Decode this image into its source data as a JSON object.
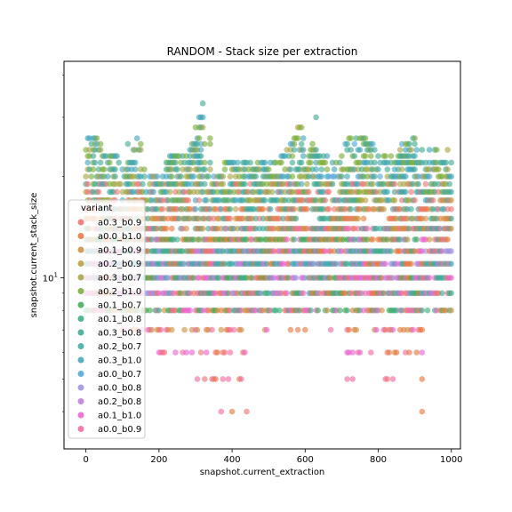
{
  "chart_data": {
    "type": "scatter",
    "title": "RANDOM - Stack size per extraction",
    "xlabel": "snapshot.current_extraction",
    "ylabel": "snapshot.current_stack_size",
    "xlim": [
      -60,
      1025
    ],
    "ylim": [
      3.1,
      44
    ],
    "y_scale": "log",
    "x_ticks": [
      0,
      200,
      400,
      600,
      800,
      1000
    ],
    "y_ticks": [
      {
        "value": 10,
        "base": "10",
        "exp": "1"
      }
    ],
    "grid": false,
    "legend": {
      "placement": "lower-left",
      "title": "variant",
      "entries": [
        {
          "name": "a0.3_b0.9",
          "color": "#f0706f"
        },
        {
          "name": "a0.0_b1.0",
          "color": "#e6743a"
        },
        {
          "name": "a0.1_b0.9",
          "color": "#cb8d3b"
        },
        {
          "name": "a0.2_b0.9",
          "color": "#b79a38"
        },
        {
          "name": "a0.3_b0.7",
          "color": "#a5a13f"
        },
        {
          "name": "a0.2_b1.0",
          "color": "#78ab32"
        },
        {
          "name": "a0.1_b0.7",
          "color": "#3ba851"
        },
        {
          "name": "a0.1_b0.8",
          "color": "#36ab7a"
        },
        {
          "name": "a0.3_b0.8",
          "color": "#38a78f"
        },
        {
          "name": "a0.2_b0.7",
          "color": "#3aa8a0"
        },
        {
          "name": "a0.3_b1.0",
          "color": "#3ba3b8"
        },
        {
          "name": "a0.0_b0.7",
          "color": "#4fa2d8"
        },
        {
          "name": "a0.0_b0.8",
          "color": "#9b8fdf"
        },
        {
          "name": "a0.2_b0.8",
          "color": "#c278db"
        },
        {
          "name": "a0.1_b1.0",
          "color": "#ea5fce"
        },
        {
          "name": "a0.0_b0.9",
          "color": "#f266a0"
        }
      ]
    },
    "levels": [
      {
        "y": 4,
        "ranges": [
          [
            370,
            370
          ],
          [
            400,
            400
          ],
          [
            440,
            440
          ],
          [
            920,
            920
          ]
        ],
        "colors": [
          "#f266a0",
          "#e6743a",
          "#f0706f",
          "#e6743a"
        ],
        "density": 1.0
      },
      {
        "y": 5,
        "ranges": [
          [
            300,
            440
          ],
          [
            710,
            730
          ],
          [
            810,
            840
          ],
          [
            900,
            920
          ]
        ],
        "colors": [
          "#e6743a",
          "#f266a0",
          "#f0706f"
        ],
        "density": 0.35
      },
      {
        "y": 6,
        "ranges": [
          [
            200,
            440
          ],
          [
            640,
            660
          ],
          [
            710,
            780
          ],
          [
            820,
            920
          ]
        ],
        "colors": [
          "#e6743a",
          "#f266a0",
          "#ea5fce",
          "#f0706f"
        ],
        "density": 0.35
      },
      {
        "y": 7,
        "ranges": [
          [
            100,
            440
          ],
          [
            490,
            500
          ],
          [
            560,
            600
          ],
          [
            660,
            920
          ]
        ],
        "colors": [
          "#e6743a",
          "#f266a0",
          "#ea5fce",
          "#cb8d3b"
        ],
        "density": 0.45
      },
      {
        "y": 8,
        "ranges": [
          [
            0,
            1000
          ]
        ],
        "colors": [
          "#e6743a",
          "#f266a0",
          "#3ba851",
          "#cb8d3b",
          "#ea5fce",
          "#36ab7a"
        ],
        "density": 0.7
      },
      {
        "y": 9,
        "ranges": [
          [
            0,
            1000
          ]
        ],
        "colors": [
          "#9b8fdf",
          "#f266a0",
          "#3ba851",
          "#e6743a",
          "#ea5fce",
          "#38a78f"
        ],
        "density": 0.85
      },
      {
        "y": 10,
        "ranges": [
          [
            0,
            1000
          ]
        ],
        "colors": [
          "#3ba851",
          "#9b8fdf",
          "#e6743a",
          "#38a78f",
          "#ea5fce",
          "#c278db"
        ],
        "density": 0.9
      },
      {
        "y": 11,
        "ranges": [
          [
            0,
            1000
          ]
        ],
        "colors": [
          "#38a78f",
          "#9b8fdf",
          "#e6743a",
          "#ea5fce",
          "#3ba3b8"
        ],
        "density": 0.9
      },
      {
        "y": 12,
        "ranges": [
          [
            0,
            1000
          ]
        ],
        "colors": [
          "#38a78f",
          "#9b8fdf",
          "#ea5fce",
          "#e6743a",
          "#36ab7a"
        ],
        "density": 0.9
      },
      {
        "y": 13,
        "ranges": [
          [
            0,
            1000
          ]
        ],
        "colors": [
          "#38a78f",
          "#e6743a",
          "#ea5fce",
          "#cb8d3b",
          "#3ba851"
        ],
        "density": 0.85
      },
      {
        "y": 14,
        "ranges": [
          [
            0,
            1000
          ]
        ],
        "colors": [
          "#e6743a",
          "#38a78f",
          "#f266a0",
          "#cb8d3b",
          "#3aa8a0"
        ],
        "density": 0.8
      },
      {
        "y": 15,
        "ranges": [
          [
            0,
            580
          ],
          [
            640,
            760
          ],
          [
            830,
            1000
          ]
        ],
        "colors": [
          "#38a78f",
          "#e6743a",
          "#f0706f",
          "#cb8d3b"
        ],
        "density": 0.75
      },
      {
        "y": 16,
        "ranges": [
          [
            0,
            1000
          ]
        ],
        "colors": [
          "#b79a38",
          "#38a78f",
          "#f0706f",
          "#3ba3b8",
          "#e6743a"
        ],
        "density": 0.7
      },
      {
        "y": 17,
        "ranges": [
          [
            0,
            1000
          ]
        ],
        "colors": [
          "#3ba3b8",
          "#38a78f",
          "#f0706f",
          "#b79a38",
          "#78ab32"
        ],
        "density": 0.7
      },
      {
        "y": 18,
        "ranges": [
          [
            0,
            1000
          ]
        ],
        "colors": [
          "#3ba3b8",
          "#38a78f",
          "#78ab32",
          "#f0706f",
          "#a5a13f"
        ],
        "density": 0.65
      },
      {
        "y": 19,
        "ranges": [
          [
            0,
            1000
          ]
        ],
        "colors": [
          "#38a78f",
          "#78ab32",
          "#3ba3b8",
          "#a5a13f",
          "#f0706f"
        ],
        "density": 0.65
      },
      {
        "y": 20,
        "ranges": [
          [
            0,
            1000
          ]
        ],
        "colors": [
          "#38a78f",
          "#78ab32",
          "#3ba3b8",
          "#4fa2d8",
          "#a5a13f"
        ],
        "density": 0.6
      },
      {
        "y": 21,
        "ranges": [
          [
            0,
            170
          ],
          [
            220,
            340
          ],
          [
            380,
            1000
          ]
        ],
        "colors": [
          "#38a78f",
          "#78ab32",
          "#3ba3b8",
          "#a5a13f"
        ],
        "density": 0.55
      },
      {
        "y": 22,
        "ranges": [
          [
            0,
            140
          ],
          [
            220,
            340
          ],
          [
            380,
            540
          ],
          [
            560,
            700
          ],
          [
            740,
            1000
          ]
        ],
        "colors": [
          "#38a78f",
          "#78ab32",
          "#3ba3b8"
        ],
        "density": 0.55
      },
      {
        "y": 23,
        "ranges": [
          [
            0,
            100
          ],
          [
            230,
            320
          ],
          [
            530,
            660
          ],
          [
            700,
            900
          ]
        ],
        "colors": [
          "#78ab32",
          "#38a78f",
          "#3ba3b8"
        ],
        "density": 0.5
      },
      {
        "y": 24,
        "ranges": [
          [
            0,
            60
          ],
          [
            120,
            160
          ],
          [
            280,
            320
          ],
          [
            550,
            640
          ],
          [
            690,
            800
          ],
          [
            840,
            1000
          ]
        ],
        "colors": [
          "#78ab32",
          "#38a78f",
          "#3ba3b8",
          "#a5a13f"
        ],
        "density": 0.45
      },
      {
        "y": 25,
        "ranges": [
          [
            0,
            40
          ],
          [
            110,
            150
          ],
          [
            290,
            340
          ],
          [
            560,
            620
          ],
          [
            700,
            790
          ],
          [
            860,
            900
          ]
        ],
        "colors": [
          "#78ab32",
          "#38a78f",
          "#4fa2d8"
        ],
        "density": 0.45
      },
      {
        "y": 26,
        "ranges": [
          [
            0,
            30
          ],
          [
            120,
            140
          ],
          [
            300,
            340
          ],
          [
            570,
            600
          ],
          [
            720,
            770
          ],
          [
            890,
            900
          ]
        ],
        "colors": [
          "#78ab32",
          "#38a78f",
          "#3ba3b8"
        ],
        "density": 0.5
      },
      {
        "y": 28,
        "ranges": [
          [
            300,
            320
          ],
          [
            580,
            600
          ],
          [
            740,
            750
          ]
        ],
        "colors": [
          "#78ab32",
          "#38a78f",
          "#a5a13f"
        ],
        "density": 0.7
      },
      {
        "y": 30,
        "ranges": [
          [
            310,
            320
          ],
          [
            630,
            630
          ]
        ],
        "colors": [
          "#78ab32",
          "#38a78f",
          "#3ba3b8"
        ],
        "density": 1.0
      },
      {
        "y": 33,
        "ranges": [
          [
            320,
            320
          ]
        ],
        "colors": [
          "#38a78f"
        ],
        "density": 1.0
      }
    ]
  }
}
